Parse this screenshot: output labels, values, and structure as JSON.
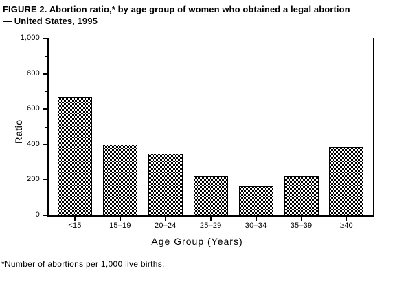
{
  "figure": {
    "background": "#ffffff"
  },
  "chart_data": {
    "type": "bar",
    "title": "FIGURE 2. Abortion ratio,* by age group of women who obtained a legal abortion — United States, 1995",
    "title_lines": [
      "FIGURE 2. Abortion ratio,* by age group of women who obtained a legal abortion",
      "— United States, 1995"
    ],
    "footnote": "*Number of abortions per 1,000 live births.",
    "categories": [
      "<15",
      "15–19",
      "20–24",
      "25–29",
      "30–34",
      "35–39",
      "≥40"
    ],
    "values": [
      665,
      400,
      347,
      220,
      165,
      220,
      385
    ],
    "xlabel": "Age Group (Years)",
    "ylabel": "Ratio",
    "ylim": [
      0,
      1000
    ],
    "y_major_ticks": [
      0,
      200,
      400,
      600,
      800,
      1000
    ],
    "y_major_tick_labels": [
      "0",
      "200",
      "400",
      "600",
      "800",
      "1,000"
    ],
    "y_minor_ticks": [
      100,
      300,
      500,
      700,
      900
    ],
    "grid": false,
    "legend": false,
    "bar_fill": "black-white-checkerboard-dither",
    "colors": {
      "bar_border": "#000000",
      "axis": "#000000",
      "text": "#000000",
      "background": "#ffffff"
    }
  }
}
